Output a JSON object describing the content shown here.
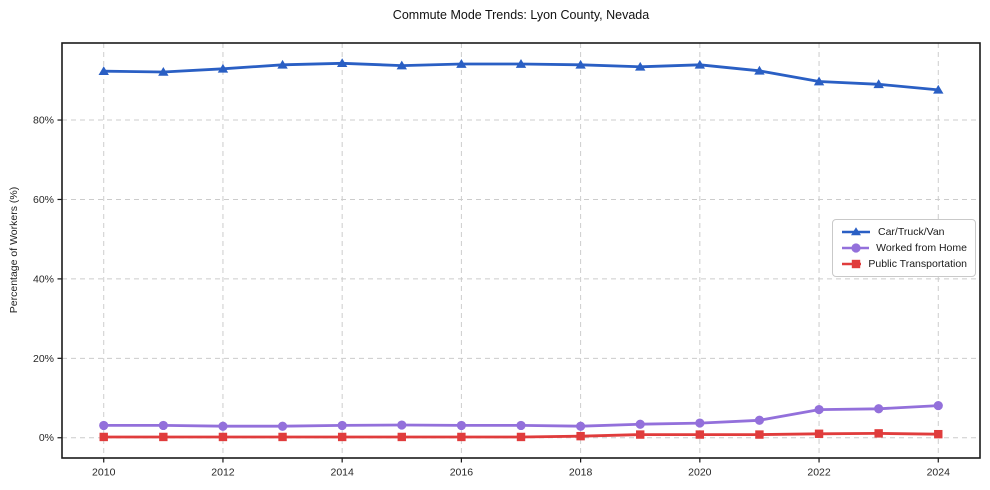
{
  "chart_data": {
    "type": "line",
    "title": "Commute Mode Trends: Lyon County, Nevada",
    "xlabel": "",
    "ylabel": "Percentage of Workers (%)",
    "x": [
      2010,
      2011,
      2012,
      2013,
      2014,
      2015,
      2016,
      2017,
      2018,
      2019,
      2020,
      2021,
      2022,
      2023,
      2024
    ],
    "series": [
      {
        "name": "Car/Truck/Van",
        "marker": "triangle",
        "color": "#2a5fc4",
        "values": [
          92.3,
          92.1,
          92.9,
          93.9,
          94.3,
          93.7,
          94.1,
          94.1,
          93.9,
          93.4,
          93.9,
          92.4,
          89.7,
          89.0,
          87.6
        ]
      },
      {
        "name": "Worked from Home",
        "marker": "circle",
        "color": "#9370db",
        "values": [
          3.1,
          3.1,
          2.9,
          2.9,
          3.1,
          3.2,
          3.1,
          3.1,
          2.9,
          3.4,
          3.7,
          4.4,
          7.1,
          7.3,
          8.1
        ]
      },
      {
        "name": "Public Transportation",
        "marker": "square",
        "color": "#e03c3c",
        "values": [
          0.2,
          0.2,
          0.2,
          0.2,
          0.2,
          0.2,
          0.2,
          0.2,
          0.4,
          0.8,
          0.8,
          0.8,
          1.0,
          1.1,
          0.9
        ]
      }
    ],
    "x_ticks": [
      {
        "value": 2010,
        "label": "2010"
      },
      {
        "value": 2012,
        "label": "2012"
      },
      {
        "value": 2014,
        "label": "2014"
      },
      {
        "value": 2016,
        "label": "2016"
      },
      {
        "value": 2018,
        "label": "2018"
      },
      {
        "value": 2020,
        "label": "2020"
      },
      {
        "value": 2022,
        "label": "2022"
      },
      {
        "value": 2024,
        "label": "2024"
      }
    ],
    "y_ticks": [
      {
        "value": 0,
        "label": "0%"
      },
      {
        "value": 20,
        "label": "20%"
      },
      {
        "value": 40,
        "label": "40%"
      },
      {
        "value": 60,
        "label": "60%"
      },
      {
        "value": 80,
        "label": "80%"
      }
    ],
    "xlim": [
      2009.3,
      2024.7
    ],
    "ylim": [
      -5.1,
      99.4
    ],
    "grid": "dashed",
    "grid_color": "#cccccc",
    "axis_color": "#1a1a1a",
    "tick_label_color": "#262626",
    "legend_position": "center right"
  }
}
